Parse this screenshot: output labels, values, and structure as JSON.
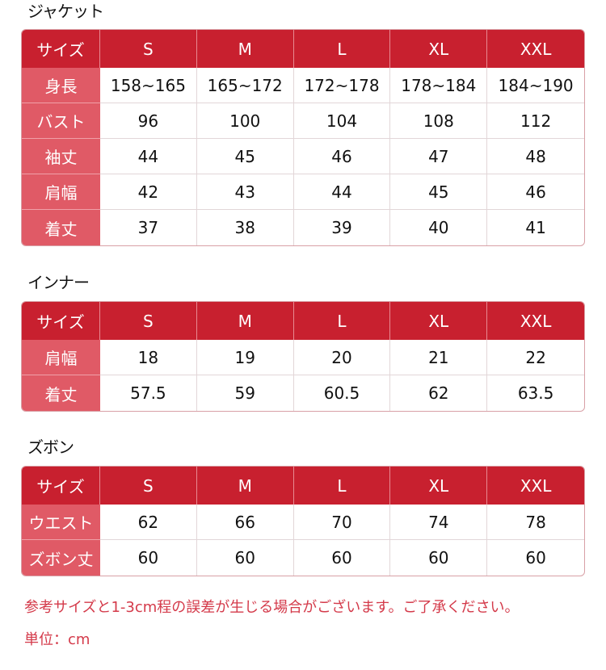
{
  "tables": [
    {
      "title": "ジャケット",
      "header": [
        "サイズ",
        "S",
        "M",
        "L",
        "XL",
        "XXL"
      ],
      "rows": [
        [
          "身長",
          "158~165",
          "165~172",
          "172~178",
          "178~184",
          "184~190"
        ],
        [
          "バスト",
          "96",
          "100",
          "104",
          "108",
          "112"
        ],
        [
          "袖丈",
          "44",
          "45",
          "46",
          "47",
          "48"
        ],
        [
          "肩幅",
          "42",
          "43",
          "44",
          "45",
          "46"
        ],
        [
          "着丈",
          "37",
          "38",
          "39",
          "40",
          "41"
        ]
      ]
    },
    {
      "title": "インナー",
      "header": [
        "サイズ",
        "S",
        "M",
        "L",
        "XL",
        "XXL"
      ],
      "rows": [
        [
          "肩幅",
          "18",
          "19",
          "20",
          "21",
          "22"
        ],
        [
          "着丈",
          "57.5",
          "59",
          "60.5",
          "62",
          "63.5"
        ]
      ]
    },
    {
      "title": "ズボン",
      "header": [
        "サイズ",
        "S",
        "M",
        "L",
        "XL",
        "XXL"
      ],
      "rows": [
        [
          "ウエスト",
          "62",
          "66",
          "70",
          "74",
          "78"
        ],
        [
          "ズボン丈",
          "60",
          "60",
          "60",
          "60",
          "60"
        ]
      ]
    }
  ],
  "notes": {
    "tolerance": "参考サイズと1-3cm程の誤差が生じる場合がございます。ご了承ください。",
    "unit": "単位：cm"
  },
  "colors": {
    "header": "#c8202f",
    "label": "#e05a66",
    "note": "#d43a4a"
  }
}
